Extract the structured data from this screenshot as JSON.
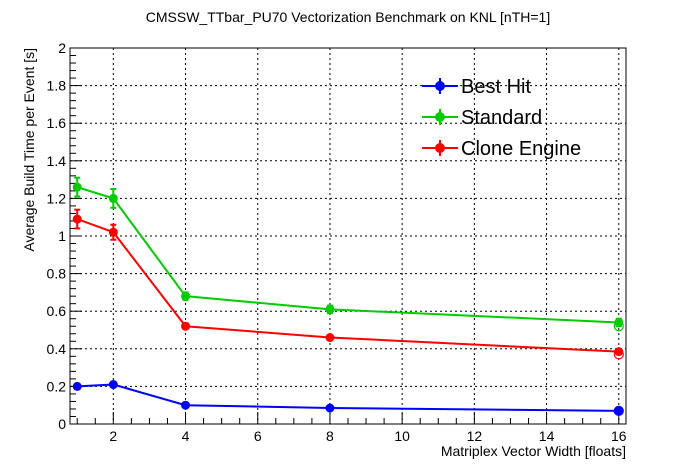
{
  "chart_data": {
    "type": "line",
    "title": "CMSSW_TTbar_PU70 Vectorization Benchmark on KNL [nTH=1]",
    "xlabel": "Matriplex Vector Width [floats]",
    "ylabel": "Average Build Time per Event [s]",
    "xlim": [
      0.8,
      16.2
    ],
    "ylim": [
      0,
      2
    ],
    "x_ticks": [
      2,
      4,
      6,
      8,
      10,
      12,
      14,
      16
    ],
    "y_ticks": [
      0,
      0.2,
      0.4,
      0.6,
      0.8,
      1,
      1.2,
      1.4,
      1.6,
      1.8,
      2
    ],
    "grid": true,
    "legend_position": "top-right",
    "x": [
      1,
      2,
      4,
      8,
      16
    ],
    "series": [
      {
        "name": "Best Hit",
        "color": "#0000ff",
        "values": [
          0.2,
          0.21,
          0.1,
          0.085,
          0.07
        ],
        "errors": [
          0.01,
          0.01,
          0.005,
          0.005,
          0.005
        ],
        "open_marker_16": 0.07
      },
      {
        "name": "Standard",
        "color": "#00cc00",
        "values": [
          1.26,
          1.2,
          0.68,
          0.61,
          0.54
        ],
        "errors": [
          0.05,
          0.05,
          0.02,
          0.02,
          0.02
        ],
        "open_marker_16": 0.52
      },
      {
        "name": "Clone Engine",
        "color": "#ff0000",
        "values": [
          1.09,
          1.02,
          0.52,
          0.46,
          0.385
        ],
        "errors": [
          0.05,
          0.04,
          0.015,
          0.01,
          0.01
        ],
        "open_marker_16": 0.37
      }
    ]
  }
}
